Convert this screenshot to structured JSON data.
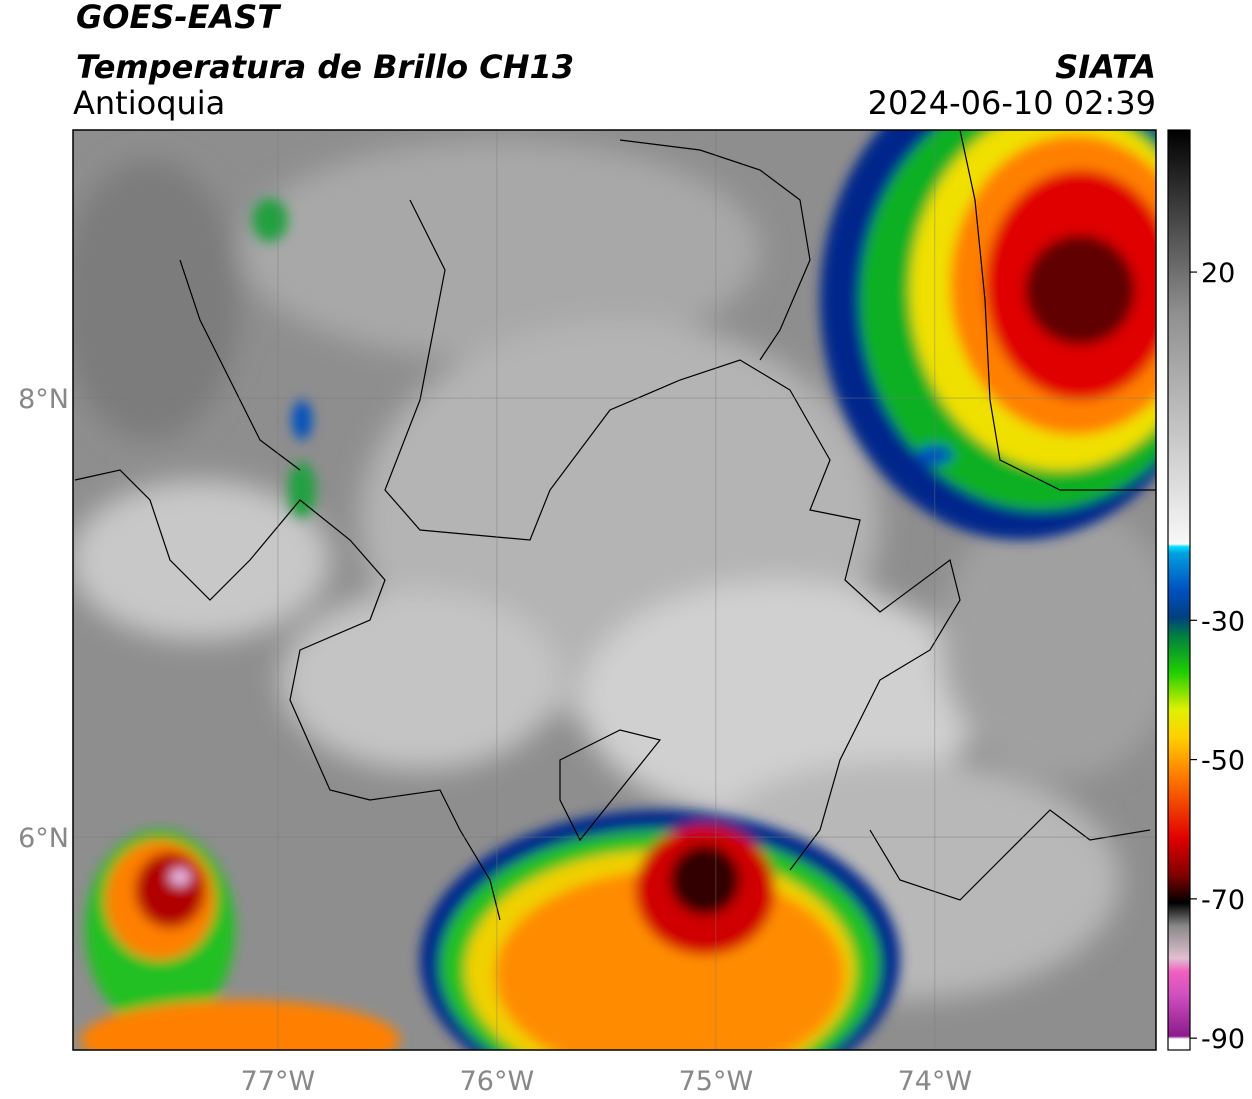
{
  "header": {
    "title": "GOES-EAST",
    "subtitle": "Temperatura de Brillo CH13",
    "region": "Antioquia",
    "source": "SIATA",
    "datetime": "2024-06-10 02:39"
  },
  "map": {
    "xlim": [
      -77.936,
      -72.99
    ],
    "ylim": [
      5.03,
      9.221
    ],
    "xticks": [
      {
        "value": -77,
        "label": "77°W"
      },
      {
        "value": -76,
        "label": "76°W"
      },
      {
        "value": -75,
        "label": "75°W"
      },
      {
        "value": -74,
        "label": "74°W"
      }
    ],
    "yticks": [
      {
        "value": 6,
        "label": "6°N"
      },
      {
        "value": 8,
        "label": "8°N"
      }
    ],
    "grid": true
  },
  "colorbar": {
    "lim": [
      -91.7,
      40.4
    ],
    "ticks": [
      20,
      -30,
      -50,
      -70,
      -90
    ]
  }
}
